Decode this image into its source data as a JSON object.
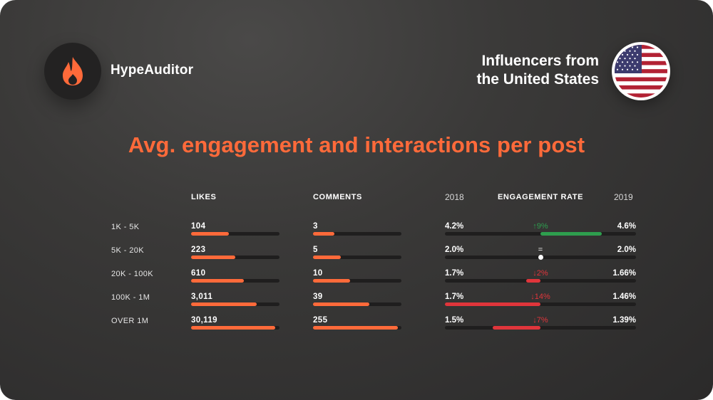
{
  "brand": {
    "name": "HypeAuditor",
    "logo": "flame-icon"
  },
  "region": {
    "line1": "Influencers from",
    "line2": "the United States",
    "flag": "us-flag-icon"
  },
  "colors": {
    "accent": "#ff6a3a",
    "increase": "#2e9e4e",
    "decrease": "#e0353b",
    "track": "#1f1e1e"
  },
  "chart_data": {
    "type": "table",
    "title": "Avg. engagement and interactions per post",
    "columns": {
      "likes": "LIKES",
      "comments": "COMMENTS",
      "er": "ENGAGEMENT RATE",
      "year_a": "2018",
      "year_b": "2019"
    },
    "likes_max": 50000,
    "comments_max": 315,
    "er_scale_max": 6.2,
    "rows": [
      {
        "category": "1K - 5K",
        "likes": 104,
        "likes_label": "104",
        "comments": 3,
        "comments_label": "3",
        "er_2018": 4.2,
        "er_2018_label": "4.2%",
        "er_2019": 4.6,
        "er_2019_label": "4.6%",
        "change": "9%",
        "direction": "up"
      },
      {
        "category": "5K - 20K",
        "likes": 223,
        "likes_label": "223",
        "comments": 5,
        "comments_label": "5",
        "er_2018": 2.0,
        "er_2018_label": "2.0%",
        "er_2019": 2.0,
        "er_2019_label": "2.0%",
        "change": "=",
        "direction": "same"
      },
      {
        "category": "20K - 100K",
        "likes": 610,
        "likes_label": "610",
        "comments": 10,
        "comments_label": "10",
        "er_2018": 1.7,
        "er_2018_label": "1.7%",
        "er_2019": 1.66,
        "er_2019_label": "1.66%",
        "change": "2%",
        "direction": "down"
      },
      {
        "category": "100K - 1M",
        "likes": 3011,
        "likes_label": "3,011",
        "comments": 39,
        "comments_label": "39",
        "er_2018": 1.7,
        "er_2018_label": "1.7%",
        "er_2019": 1.46,
        "er_2019_label": "1.46%",
        "change": "14%",
        "direction": "down"
      },
      {
        "category": "OVER 1M",
        "likes": 30119,
        "likes_label": "30,119",
        "comments": 255,
        "comments_label": "255",
        "er_2018": 1.5,
        "er_2018_label": "1.5%",
        "er_2019": 1.39,
        "er_2019_label": "1.39%",
        "change": "7%",
        "direction": "down"
      }
    ]
  }
}
